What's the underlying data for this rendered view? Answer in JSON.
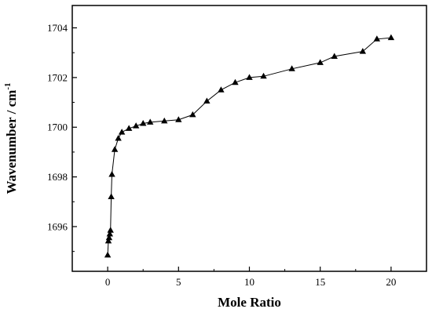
{
  "chart_data": {
    "type": "line",
    "title": "",
    "xlabel": "Mole Ratio",
    "ylabel": "Wavenumber / cm",
    "ylabel_superscript": "-1",
    "xlim": [
      -2.5,
      22.5
    ],
    "ylim": [
      1694.2,
      1704.9
    ],
    "x_ticks": [
      0,
      5,
      10,
      15,
      20
    ],
    "y_ticks": [
      1696,
      1698,
      1700,
      1702,
      1704
    ],
    "marker": "triangle",
    "line_color": "#000000",
    "grid": false,
    "legend": "none",
    "series": [
      {
        "x": [
          0.0,
          0.05,
          0.1,
          0.15,
          0.2,
          0.25,
          0.3,
          0.5,
          0.75,
          1.0,
          1.5,
          2.0,
          2.5,
          3.0,
          4.0,
          5.0,
          6.0,
          7.0,
          8.0,
          9.0,
          10.0,
          11.0,
          13.0,
          15.0,
          16.0,
          18.0,
          19.0,
          20.0
        ],
        "y": [
          1694.85,
          1695.42,
          1695.55,
          1695.7,
          1695.85,
          1697.2,
          1698.1,
          1699.1,
          1699.55,
          1699.8,
          1699.95,
          1700.05,
          1700.15,
          1700.2,
          1700.25,
          1700.3,
          1700.5,
          1701.05,
          1701.5,
          1701.8,
          1702.0,
          1702.05,
          1702.35,
          1702.6,
          1702.85,
          1703.05,
          1703.55,
          1703.6
        ]
      }
    ]
  }
}
